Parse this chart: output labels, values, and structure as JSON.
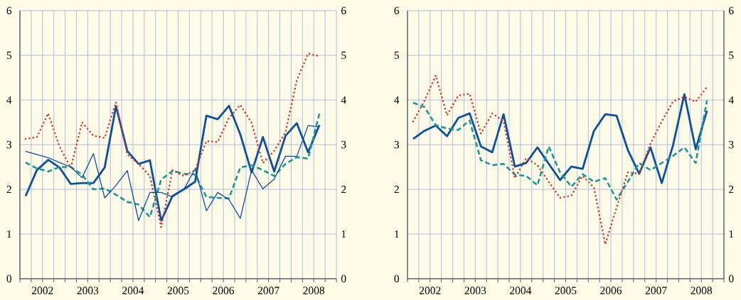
{
  "chart_data": [
    {
      "type": "line",
      "x": [
        2002.125,
        2002.375,
        2002.625,
        2002.875,
        2003.125,
        2003.375,
        2003.625,
        2003.875,
        2004.125,
        2004.375,
        2004.625,
        2004.875,
        2005.125,
        2005.375,
        2005.625,
        2005.875,
        2006.125,
        2006.375,
        2006.625,
        2006.875,
        2007.125,
        2007.375,
        2007.625,
        2007.875,
        2008.125,
        2008.375,
        2008.625
      ],
      "xlim": [
        2002,
        2009
      ],
      "xticks": [
        {
          "value": 2002,
          "label": null
        },
        {
          "value": 2002.25,
          "label": null
        },
        {
          "value": 2002.5,
          "label": "2002"
        },
        {
          "value": 2002.75,
          "label": null
        },
        {
          "value": 2003,
          "label": null
        },
        {
          "value": 2003.25,
          "label": null
        },
        {
          "value": 2003.5,
          "label": "2003"
        },
        {
          "value": 2003.75,
          "label": null
        },
        {
          "value": 2004,
          "label": null
        },
        {
          "value": 2004.25,
          "label": null
        },
        {
          "value": 2004.5,
          "label": "2004"
        },
        {
          "value": 2004.75,
          "label": null
        },
        {
          "value": 2005,
          "label": null
        },
        {
          "value": 2005.25,
          "label": null
        },
        {
          "value": 2005.5,
          "label": "2005"
        },
        {
          "value": 2005.75,
          "label": null
        },
        {
          "value": 2006,
          "label": null
        },
        {
          "value": 2006.25,
          "label": null
        },
        {
          "value": 2006.5,
          "label": "2006"
        },
        {
          "value": 2006.75,
          "label": null
        },
        {
          "value": 2007,
          "label": null
        },
        {
          "value": 2007.25,
          "label": null
        },
        {
          "value": 2007.5,
          "label": "2007"
        },
        {
          "value": 2007.75,
          "label": null
        },
        {
          "value": 2008,
          "label": null
        },
        {
          "value": 2008.25,
          "label": null
        },
        {
          "value": 2008.5,
          "label": "2008"
        },
        {
          "value": 2008.75,
          "label": null
        },
        {
          "value": 2009,
          "label": null
        }
      ],
      "ylim": [
        0,
        6
      ],
      "yticks": [
        0,
        1,
        2,
        3,
        4,
        5,
        6
      ],
      "y2lim": [
        0,
        6
      ],
      "y2ticks": [
        0,
        1,
        2,
        3,
        4,
        5,
        6
      ],
      "grid": true,
      "series": [
        {
          "color": "#0b4f9f",
          "line_style": "solid",
          "values": [
            1.85,
            2.43,
            2.66,
            2.49,
            2.12,
            2.14,
            2.14,
            2.49,
            3.86,
            2.86,
            2.57,
            2.65,
            1.3,
            1.85,
            2.0,
            2.17,
            3.65,
            3.57,
            3.87,
            3.23,
            2.38,
            3.17,
            2.4,
            3.2,
            3.48,
            2.83,
            3.44
          ]
        },
        {
          "color": "#17979a",
          "line_style": "dashed",
          "values": [
            2.6,
            2.47,
            2.4,
            2.5,
            2.5,
            2.33,
            2.0,
            2.02,
            1.88,
            1.72,
            1.66,
            1.38,
            2.22,
            2.41,
            2.35,
            2.33,
            1.83,
            1.81,
            1.8,
            2.49,
            2.54,
            2.43,
            2.3,
            2.57,
            2.72,
            2.69,
            3.7
          ]
        },
        {
          "color": "#d4342a",
          "line_style": "dotted",
          "values": [
            3.13,
            3.17,
            3.7,
            2.96,
            2.48,
            3.5,
            3.2,
            3.15,
            3.95,
            2.78,
            2.57,
            2.3,
            1.15,
            2.43,
            2.3,
            2.43,
            3.08,
            3.06,
            3.6,
            3.89,
            3.49,
            2.59,
            2.86,
            3.28,
            4.44,
            5.04,
            4.98
          ]
        },
        {
          "color": "#0b4f9f",
          "line_style": "solid",
          "values": [
            2.85,
            2.78,
            2.71,
            2.6,
            2.5,
            2.26,
            2.8,
            1.81,
            2.09,
            2.42,
            1.3,
            1.93,
            1.93,
            1.83,
            2.0,
            2.46,
            1.52,
            1.93,
            1.77,
            1.35,
            2.43,
            2.01,
            2.23,
            2.74,
            2.74,
            3.43,
            3.39
          ]
        }
      ]
    },
    {
      "type": "line",
      "x": [
        2002.125,
        2002.375,
        2002.625,
        2002.875,
        2003.125,
        2003.375,
        2003.625,
        2003.875,
        2004.125,
        2004.375,
        2004.625,
        2004.875,
        2005.125,
        2005.375,
        2005.625,
        2005.875,
        2006.125,
        2006.375,
        2006.625,
        2006.875,
        2007.125,
        2007.375,
        2007.625,
        2007.875,
        2008.125,
        2008.375,
        2008.625
      ],
      "xlim": [
        2002,
        2009
      ],
      "xticks": [
        {
          "value": 2002,
          "label": null
        },
        {
          "value": 2002.25,
          "label": null
        },
        {
          "value": 2002.5,
          "label": "2002"
        },
        {
          "value": 2002.75,
          "label": null
        },
        {
          "value": 2003,
          "label": null
        },
        {
          "value": 2003.25,
          "label": null
        },
        {
          "value": 2003.5,
          "label": "2003"
        },
        {
          "value": 2003.75,
          "label": null
        },
        {
          "value": 2004,
          "label": null
        },
        {
          "value": 2004.25,
          "label": null
        },
        {
          "value": 2004.5,
          "label": "2004"
        },
        {
          "value": 2004.75,
          "label": null
        },
        {
          "value": 2005,
          "label": null
        },
        {
          "value": 2005.25,
          "label": null
        },
        {
          "value": 2005.5,
          "label": "2005"
        },
        {
          "value": 2005.75,
          "label": null
        },
        {
          "value": 2006,
          "label": null
        },
        {
          "value": 2006.25,
          "label": null
        },
        {
          "value": 2006.5,
          "label": "2006"
        },
        {
          "value": 2006.75,
          "label": null
        },
        {
          "value": 2007,
          "label": null
        },
        {
          "value": 2007.25,
          "label": null
        },
        {
          "value": 2007.5,
          "label": "2007"
        },
        {
          "value": 2007.75,
          "label": null
        },
        {
          "value": 2008,
          "label": null
        },
        {
          "value": 2008.25,
          "label": null
        },
        {
          "value": 2008.5,
          "label": "2008"
        },
        {
          "value": 2008.75,
          "label": null
        },
        {
          "value": 2009,
          "label": null
        }
      ],
      "ylim": [
        0,
        6
      ],
      "yticks": [
        0,
        1,
        2,
        3,
        4,
        5,
        6
      ],
      "y2lim": [
        0,
        6
      ],
      "y2ticks": [
        0,
        1,
        2,
        3,
        4,
        5,
        6
      ],
      "grid": true,
      "series": [
        {
          "color": "#0b4f9f",
          "line_style": "solid",
          "values": [
            3.13,
            3.31,
            3.43,
            3.19,
            3.6,
            3.7,
            2.96,
            2.83,
            3.68,
            2.51,
            2.59,
            2.94,
            2.57,
            2.21,
            2.51,
            2.46,
            3.31,
            3.68,
            3.65,
            2.88,
            2.35,
            2.94,
            2.14,
            2.99,
            4.13,
            2.9,
            3.76
          ]
        },
        {
          "color": "#17979a",
          "line_style": "dashed",
          "values": [
            3.94,
            3.84,
            3.44,
            3.36,
            3.33,
            3.54,
            2.65,
            2.54,
            2.57,
            2.33,
            2.3,
            2.09,
            2.96,
            2.38,
            2.06,
            2.34,
            2.17,
            2.25,
            1.77,
            2.17,
            2.59,
            2.43,
            2.59,
            2.75,
            2.94,
            2.59,
            3.99
          ]
        },
        {
          "color": "#d4342a",
          "line_style": "dotted",
          "values": [
            3.52,
            3.98,
            4.55,
            3.66,
            4.1,
            4.14,
            3.25,
            3.7,
            3.53,
            2.25,
            2.7,
            2.54,
            2.17,
            1.81,
            1.86,
            2.3,
            2.04,
            0.77,
            1.59,
            2.38,
            2.35,
            3.02,
            3.52,
            3.97,
            4.07,
            3.96,
            4.29
          ]
        }
      ]
    }
  ]
}
